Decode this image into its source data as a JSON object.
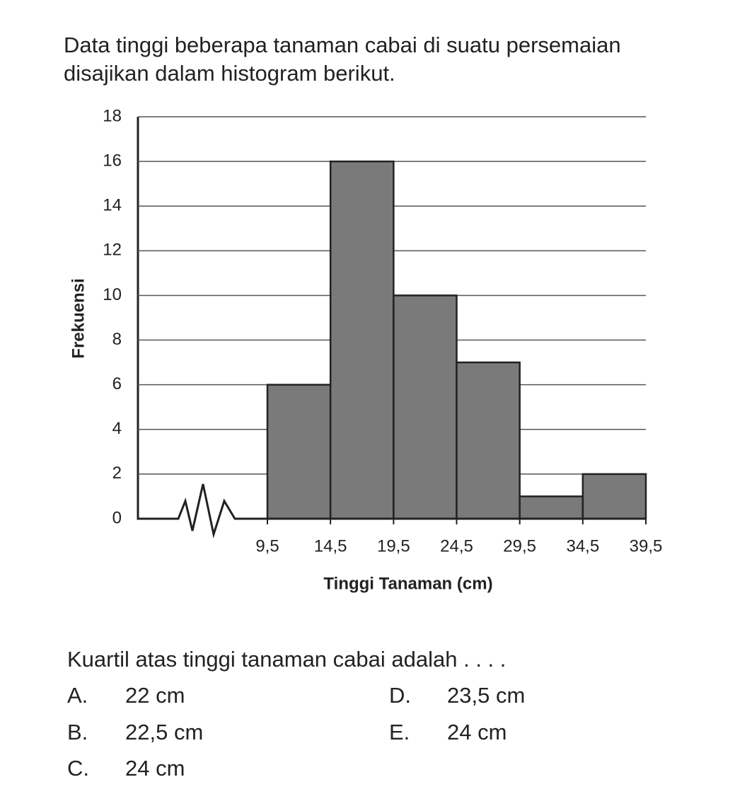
{
  "intro": "Data tinggi beberapa tanaman cabai di suatu persemaian disajikan dalam histogram berikut.",
  "chart_data": {
    "type": "histogram",
    "xlabel": "Tinggi Tanaman (cm)",
    "ylabel": "Frekuensi",
    "bins": [
      9.5,
      14.5,
      19.5,
      24.5,
      29.5,
      34.5,
      39.5
    ],
    "values": [
      6,
      16,
      10,
      7,
      1,
      2
    ],
    "color": "#7a7a7a",
    "xlim": [
      9.5,
      39.5
    ],
    "xticks": [
      {
        "value": 9.5,
        "label": "9,5"
      },
      {
        "value": 14.5,
        "label": "14,5"
      },
      {
        "value": 19.5,
        "label": "19,5"
      },
      {
        "value": 24.5,
        "label": "24,5"
      },
      {
        "value": 29.5,
        "label": "29,5"
      },
      {
        "value": 34.5,
        "label": "34,5"
      },
      {
        "value": 39.5,
        "label": "39,5"
      }
    ],
    "ylim": [
      0,
      18
    ],
    "yticks": [
      0,
      2,
      4,
      6,
      8,
      10,
      12,
      14,
      16,
      18
    ],
    "grid": true
  },
  "question": "Kuartil atas tinggi tanaman cabai adalah . . . .",
  "options": [
    {
      "letter": "A.",
      "text": "22 cm"
    },
    {
      "letter": "B.",
      "text": "22,5 cm"
    },
    {
      "letter": "C.",
      "text": "24 cm"
    },
    {
      "letter": "D.",
      "text": "23,5 cm"
    },
    {
      "letter": "E.",
      "text": "24 cm"
    }
  ]
}
